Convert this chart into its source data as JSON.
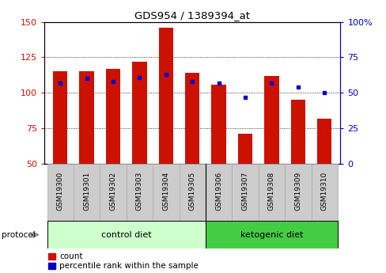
{
  "title": "GDS954 / 1389394_at",
  "samples": [
    "GSM19300",
    "GSM19301",
    "GSM19302",
    "GSM19303",
    "GSM19304",
    "GSM19305",
    "GSM19306",
    "GSM19307",
    "GSM19308",
    "GSM19309",
    "GSM19310"
  ],
  "red_values": [
    115,
    115,
    117,
    122,
    146,
    114,
    106,
    71,
    112,
    95,
    82
  ],
  "blue_pct": [
    57,
    60,
    58,
    61,
    63,
    58,
    57,
    47,
    57,
    54,
    50
  ],
  "ylim_left": [
    50,
    150
  ],
  "ylim_right": [
    0,
    100
  ],
  "yticks_left": [
    50,
    75,
    100,
    125,
    150
  ],
  "yticks_right": [
    0,
    25,
    50,
    75,
    100
  ],
  "ytick_labels_right": [
    "0",
    "25",
    "50",
    "75",
    "100%"
  ],
  "bar_bottom": 50,
  "bar_color": "#cc1100",
  "blue_color": "#0000cc",
  "n_ctrl": 6,
  "n_keto": 5,
  "control_label": "control diet",
  "ketogenic_label": "ketogenic diet",
  "protocol_label": "protocol",
  "legend_count": "count",
  "legend_pct": "percentile rank within the sample",
  "control_bg": "#ccffcc",
  "ketogenic_bg": "#44cc44",
  "tick_bg": "#cccccc",
  "bar_width": 0.55
}
